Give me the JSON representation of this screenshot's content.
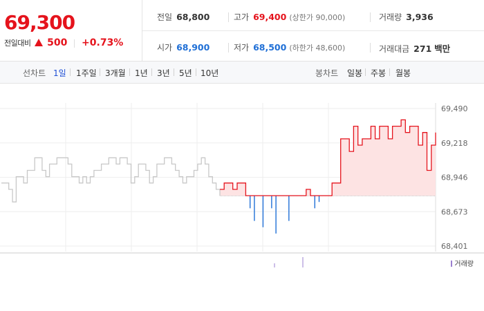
{
  "quote": {
    "current_price": "69,300",
    "change_label": "전일대비",
    "change_amount": "500",
    "change_percent": "+0.73%",
    "stats": {
      "prev_close": {
        "label": "전일",
        "value": "68,800"
      },
      "high": {
        "label": "고가",
        "value": "69,400",
        "sub": "(상한가 90,000)"
      },
      "volume": {
        "label": "거래량",
        "value": "3,936"
      },
      "open": {
        "label": "시가",
        "value": "68,900"
      },
      "low": {
        "label": "저가",
        "value": "68,500",
        "sub": "(하한가 48,600)"
      },
      "trade_value": {
        "label": "거래대금",
        "value": "271",
        "unit": "백만"
      }
    }
  },
  "tabs": {
    "line_label": "선차트",
    "line_periods": [
      "1일",
      "1주일",
      "3개월",
      "1년",
      "3년",
      "5년",
      "10년"
    ],
    "active_period": "1일",
    "candle_label": "봉차트",
    "candle_periods": [
      "일봉",
      "주봉",
      "월봉"
    ]
  },
  "colors": {
    "up": "#e5131c",
    "down": "#1f6fd6",
    "history": "#c8c8c8",
    "fill_up": "#fde3e3",
    "volume": "#9b7fd0"
  },
  "chart_data": {
    "type": "line",
    "y_ticks": [
      "69,490",
      "69,218",
      "68,946",
      "68,673",
      "68,401"
    ],
    "ylim": [
      68401,
      69490
    ],
    "baseline": 68800,
    "grid": true,
    "history_series": [
      68900,
      68900,
      68850,
      68750,
      68950,
      68950,
      68900,
      69000,
      69000,
      69100,
      69100,
      69000,
      68950,
      69050,
      69050,
      69100,
      69100,
      69100,
      69050,
      68950,
      68950,
      68900,
      68950,
      68900,
      68950,
      69000,
      69000,
      69050,
      69050,
      69100,
      69100,
      69050,
      69100,
      69100,
      69050,
      68900,
      68950,
      69050,
      69050,
      69000,
      68900,
      68950,
      69050,
      69050,
      69100,
      69100,
      69050,
      69000,
      68950,
      68900,
      68950,
      68950,
      69000,
      69050,
      69100,
      69050,
      68950,
      68900,
      68850,
      68800
    ],
    "today_series": [
      68850,
      68900,
      68900,
      68850,
      68900,
      68900,
      68800,
      68700,
      68600,
      68800,
      68550,
      68800,
      68700,
      68500,
      68800,
      68800,
      68600,
      68800,
      68800,
      68800,
      68850,
      68800,
      68700,
      68750,
      68800,
      68800,
      68900,
      68900,
      69250,
      69250,
      69150,
      69350,
      69200,
      69250,
      69250,
      69350,
      69250,
      69350,
      69350,
      69250,
      69350,
      69350,
      69400,
      69300,
      69350,
      69350,
      69200,
      69300,
      69000,
      69200,
      69300
    ],
    "volume_legend": "거래량"
  }
}
